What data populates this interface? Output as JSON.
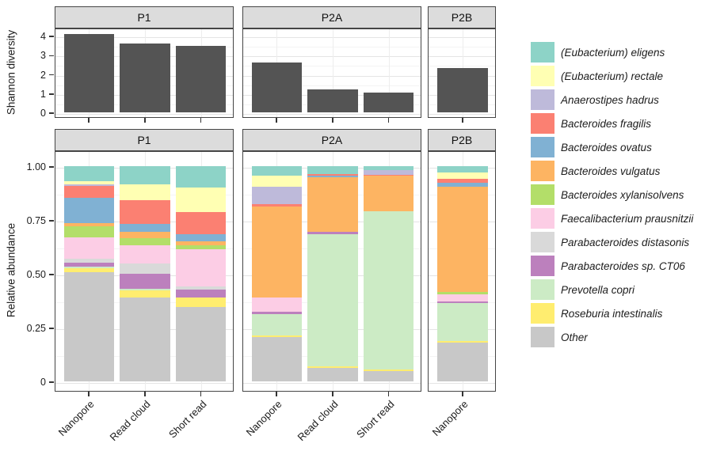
{
  "figure": {
    "colors": {
      "shannon_bar": "#545454",
      "panel_border": "#454545",
      "strip_bg": "#dcdcdc",
      "grid_major": "#e4e4e4",
      "grid_minor": "#f4f4f4",
      "grid_vertical": "#ededed",
      "axis_text": "#1c1c1c"
    }
  },
  "chart_data": [
    {
      "type": "bar",
      "title": "",
      "ylabel": "Shannon diversity",
      "ylim": [
        0,
        4.3
      ],
      "yticks": [
        4,
        3,
        2,
        1,
        0
      ],
      "grid": true,
      "facets": [
        {
          "label": "P1",
          "categories": [
            "Nanopore",
            "Read cloud",
            "Short read"
          ],
          "values": [
            4.1,
            3.6,
            3.45
          ]
        },
        {
          "label": "P2A",
          "categories": [
            "Nanopore",
            "Read cloud",
            "Short read"
          ],
          "values": [
            2.6,
            1.2,
            1.05
          ]
        },
        {
          "label": "P2B",
          "categories": [
            "Nanopore"
          ],
          "values": [
            2.3
          ]
        }
      ]
    },
    {
      "type": "stacked-bar",
      "title": "",
      "ylabel": "Relative abundance",
      "ylim": [
        0,
        1
      ],
      "yticks": [
        1.0,
        0.75,
        0.5,
        0.25,
        0
      ],
      "ytick_labels": [
        "1.00",
        "0.75",
        "0.50",
        "0.25",
        "0"
      ],
      "grid": true,
      "legend_position": "right",
      "stack_order_note": "legend order = top of stack to bottom of stack",
      "legend": [
        {
          "label": "(Eubacterium) eligens",
          "color": "#8DD3C7"
        },
        {
          "label": "(Eubacterium) rectale",
          "color": "#FFFFB3"
        },
        {
          "label": "Anaerostipes hadrus",
          "color": "#BEBADA"
        },
        {
          "label": "Bacteroides fragilis",
          "color": "#FB8072"
        },
        {
          "label": "Bacteroides ovatus",
          "color": "#80B1D3"
        },
        {
          "label": "Bacteroides vulgatus",
          "color": "#FDB462"
        },
        {
          "label": "Bacteroides xylanisolvens",
          "color": "#B3DE69"
        },
        {
          "label": "Faecalibacterium prausnitzii",
          "color": "#FCCDE5"
        },
        {
          "label": "Parabacteroides distasonis",
          "color": "#D9D9D9"
        },
        {
          "label": "Parabacteroides sp. CT06",
          "color": "#BC80BD"
        },
        {
          "label": "Prevotella copri",
          "color": "#CCEBC5"
        },
        {
          "label": "Roseburia intestinalis",
          "color": "#FFED6F"
        },
        {
          "label": "Other",
          "color": "#C8C8C8"
        }
      ],
      "facets": [
        {
          "label": "P1",
          "categories": [
            "Nanopore",
            "Read cloud",
            "Short read"
          ],
          "bars": [
            [
              0.07,
              0.015,
              0.008,
              0.055,
              0.115,
              0.018,
              0.05,
              0.1,
              0.016,
              0.021,
              0.005,
              0.019,
              0.508
            ],
            [
              0.085,
              0.074,
              0.0,
              0.108,
              0.038,
              0.03,
              0.031,
              0.086,
              0.047,
              0.07,
              0.008,
              0.032,
              0.391
            ],
            [
              0.098,
              0.116,
              0.0,
              0.102,
              0.033,
              0.018,
              0.018,
              0.174,
              0.015,
              0.037,
              0.0,
              0.043,
              0.346
            ]
          ]
        },
        {
          "label": "P2A",
          "categories": [
            "Nanopore",
            "Read cloud",
            "Short read"
          ],
          "bars": [
            [
              0.045,
              0.052,
              0.081,
              0.01,
              0.0,
              0.422,
              0.0,
              0.067,
              0.0,
              0.009,
              0.101,
              0.006,
              0.207
            ],
            [
              0.036,
              0.0,
              0.0,
              0.007,
              0.007,
              0.256,
              0.0,
              0.0,
              0.0,
              0.01,
              0.615,
              0.008,
              0.061
            ],
            [
              0.018,
              0.0,
              0.021,
              0.004,
              0.0,
              0.168,
              0.0,
              0.0,
              0.0,
              0.0,
              0.735,
              0.005,
              0.049
            ]
          ]
        },
        {
          "label": "P2B",
          "categories": [
            "Nanopore"
          ],
          "bars": [
            [
              0.029,
              0.028,
              0.0,
              0.021,
              0.019,
              0.486,
              0.012,
              0.033,
              0.0,
              0.007,
              0.178,
              0.007,
              0.18
            ]
          ]
        }
      ]
    }
  ]
}
